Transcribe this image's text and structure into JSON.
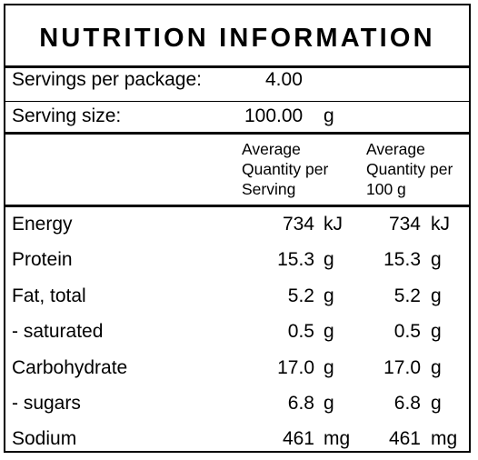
{
  "title": "NUTRITION INFORMATION",
  "servings": {
    "per_package_label": "Servings per package:",
    "per_package_value": "4.00",
    "size_label": "Serving size:",
    "size_value": "100.00",
    "size_unit": "g"
  },
  "columns": {
    "per_serving": [
      "Average",
      "Quantity per",
      "Serving"
    ],
    "per_100g": [
      "Average",
      "Quantity per",
      "100 g"
    ]
  },
  "rows": [
    {
      "name": "Energy",
      "serving": "734",
      "serving_unit": "kJ",
      "per100": "734",
      "per100_unit": "kJ"
    },
    {
      "name": "Protein",
      "serving": "15.3",
      "serving_unit": "g",
      "per100": "15.3",
      "per100_unit": "g"
    },
    {
      "name": "Fat, total",
      "serving": "5.2",
      "serving_unit": "g",
      "per100": "5.2",
      "per100_unit": "g"
    },
    {
      "name": "- saturated",
      "serving": "0.5",
      "serving_unit": "g",
      "per100": "0.5",
      "per100_unit": "g"
    },
    {
      "name": "Carbohydrate",
      "serving": "17.0",
      "serving_unit": "g",
      "per100": "17.0",
      "per100_unit": "g"
    },
    {
      "name": "- sugars",
      "serving": "6.8",
      "serving_unit": "g",
      "per100": "6.8",
      "per100_unit": "g"
    },
    {
      "name": "Sodium",
      "serving": "461",
      "serving_unit": "mg",
      "per100": "461",
      "per100_unit": "mg"
    }
  ]
}
